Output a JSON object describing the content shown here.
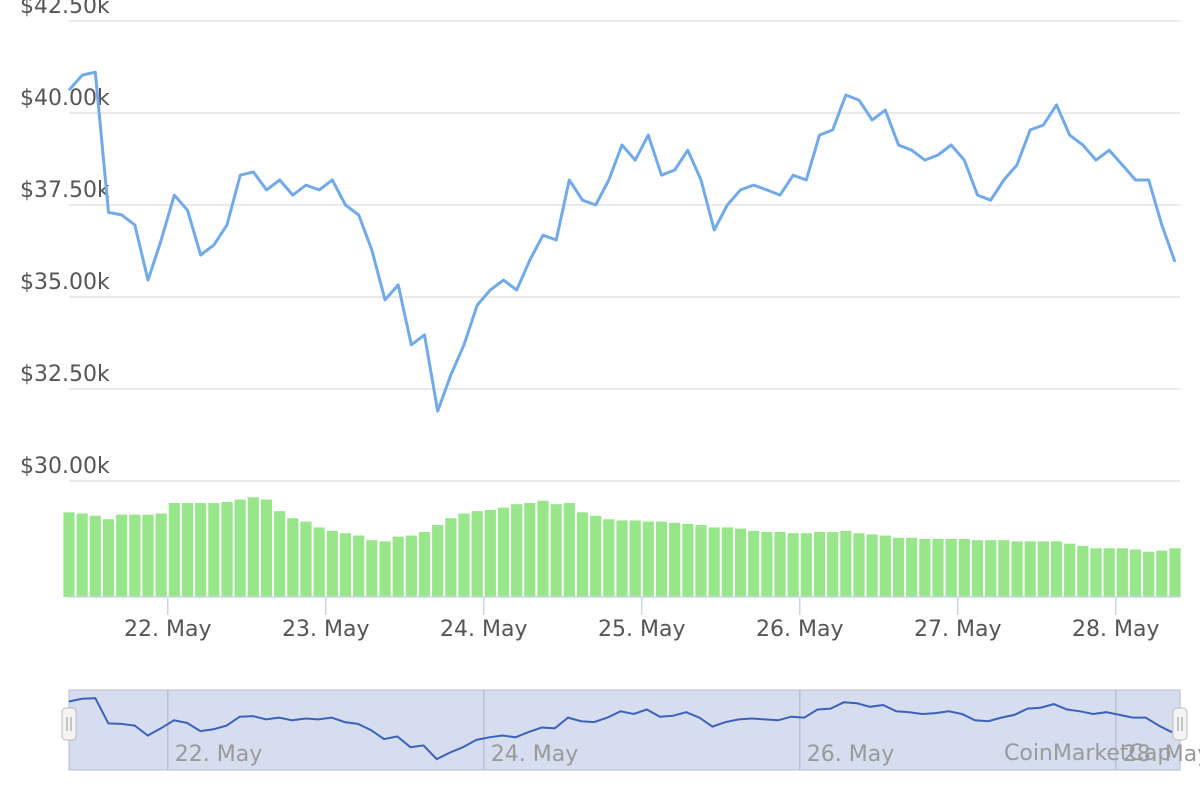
{
  "chart_data": {
    "type": "line",
    "ylim": [
      30000,
      42500
    ],
    "yticks": [
      {
        "value": 30000,
        "label": "$30.00k"
      },
      {
        "value": 32500,
        "label": "$32.50k"
      },
      {
        "value": 35000,
        "label": "$35.00k"
      },
      {
        "value": 37500,
        "label": "$37.50k"
      },
      {
        "value": 40000,
        "label": "$40.00k"
      },
      {
        "value": 42500,
        "label": "$42.50k"
      }
    ],
    "xlim": [
      0,
      84
    ],
    "xticks": [
      {
        "value": 7.5,
        "label": "22. May"
      },
      {
        "value": 19.5,
        "label": "23. May"
      },
      {
        "value": 31.5,
        "label": "24. May"
      },
      {
        "value": 43.5,
        "label": "25. May"
      },
      {
        "value": 55.5,
        "label": "26. May"
      },
      {
        "value": 67.5,
        "label": "27. May"
      },
      {
        "value": 79.5,
        "label": "28. May"
      }
    ],
    "grid": true,
    "series": [
      {
        "color": "#72aae8",
        "values": [
          40620,
          41030,
          41110,
          37300,
          37230,
          36960,
          35460,
          36550,
          37770,
          37360,
          36140,
          36410,
          36960,
          38310,
          38400,
          37910,
          38180,
          37770,
          38040,
          37910,
          38180,
          37500,
          37230,
          36280,
          34920,
          35330,
          33700,
          33970,
          31900,
          32880,
          33700,
          34780,
          35190,
          35460,
          35190,
          36000,
          36680,
          36550,
          38180,
          37630,
          37500,
          38180,
          39130,
          38720,
          39400,
          38310,
          38450,
          38990,
          38180,
          36820,
          37500,
          37910,
          38040,
          37910,
          37770,
          38310,
          38180,
          39400,
          39540,
          40490,
          40350,
          39810,
          40080,
          39130,
          38990,
          38720,
          38860,
          39130,
          38720,
          37770,
          37630,
          38180,
          38590,
          39540,
          39670,
          40220,
          39400,
          39130,
          38720,
          38990,
          38590,
          38180,
          38180,
          36960,
          35950
        ]
      }
    ],
    "volume": {
      "color": "#98e68a",
      "ylim": [
        0,
        100
      ],
      "values": [
        73,
        72,
        70,
        67,
        71,
        71,
        71,
        72,
        81,
        81,
        81,
        81,
        82,
        84,
        86,
        84,
        74,
        68,
        65,
        60,
        57,
        55,
        53,
        49,
        48,
        52,
        53,
        56,
        62,
        68,
        72,
        74,
        75,
        77,
        80,
        81,
        83,
        80,
        81,
        73,
        70,
        67,
        66,
        66,
        65,
        65,
        64,
        63,
        62,
        60,
        60,
        59,
        57,
        56,
        56,
        55,
        55,
        56,
        56,
        57,
        55,
        54,
        53,
        51,
        51,
        50,
        50,
        50,
        50,
        49,
        49,
        49,
        48,
        48,
        48,
        48,
        46,
        44,
        42,
        42,
        42,
        41,
        39,
        40,
        42
      ]
    },
    "navigator": {
      "color": "#3a62b8",
      "ylim": [
        31000,
        41600
      ]
    },
    "watermark": "CoinMarketCap"
  }
}
